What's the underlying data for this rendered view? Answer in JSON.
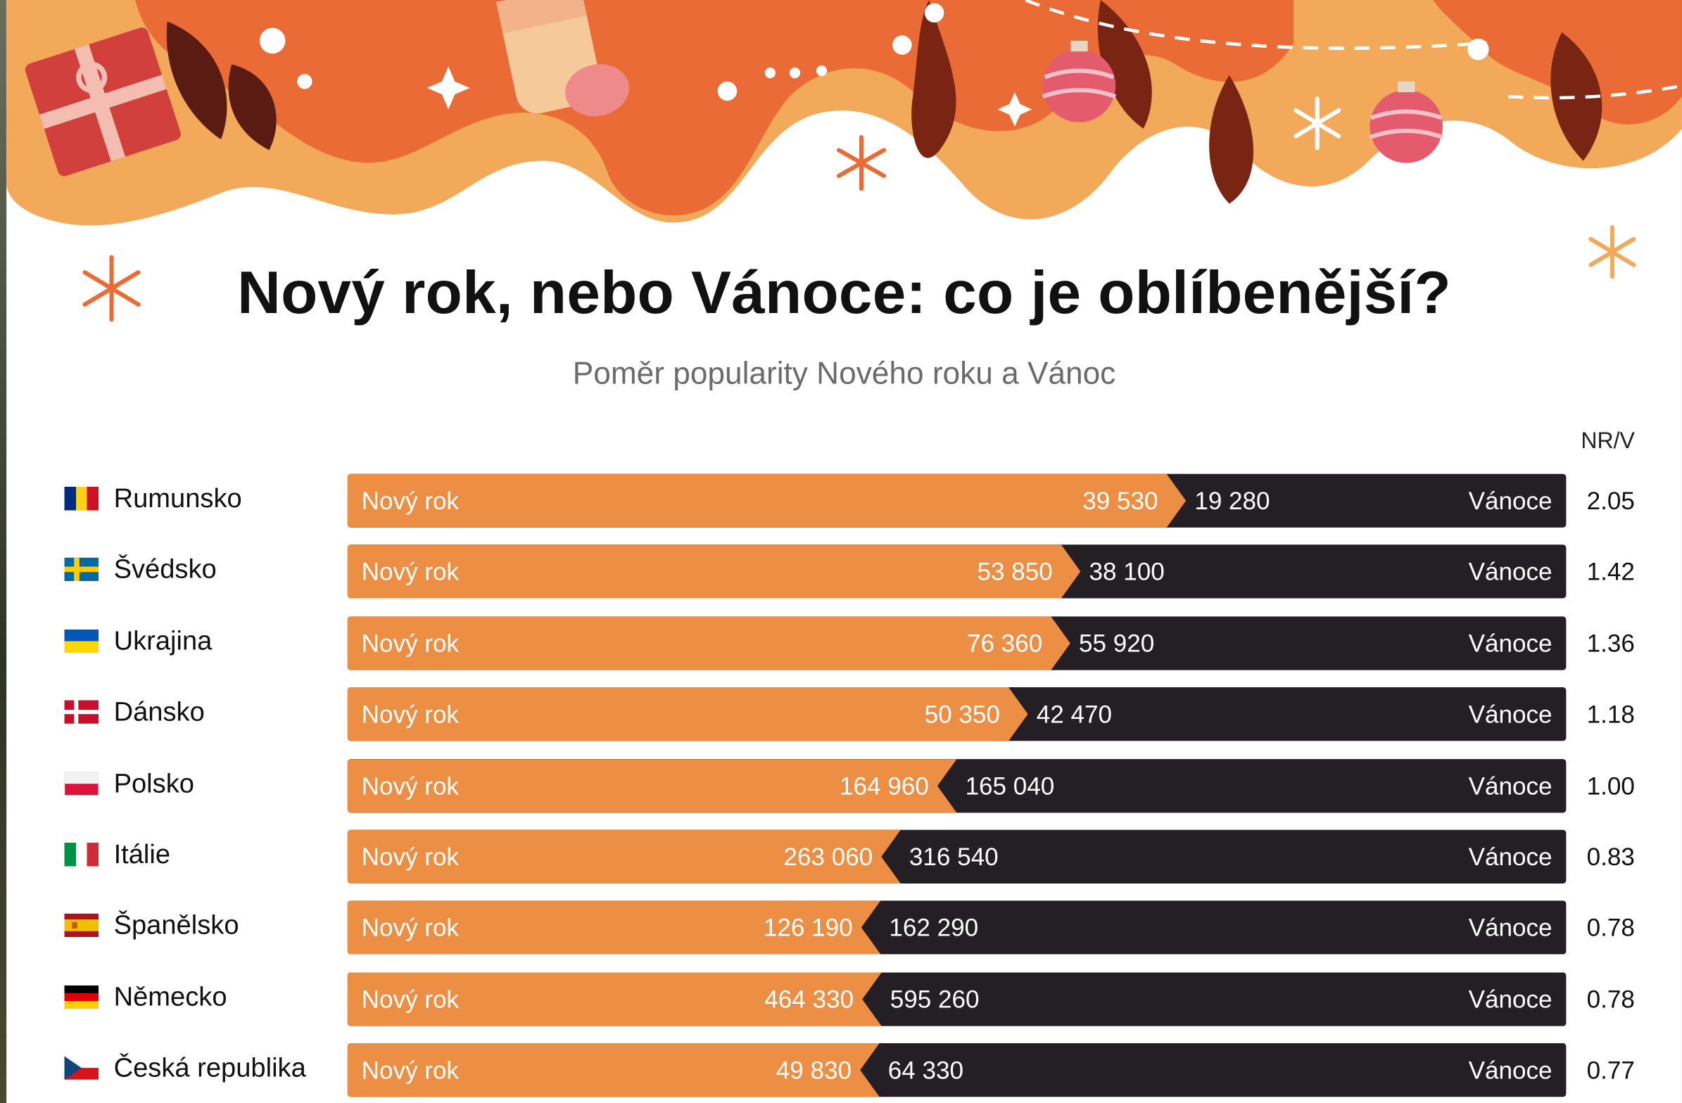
{
  "chart_data": {
    "type": "bar",
    "layout": "diverging-stacked-horizontal",
    "title": "Nový rok, nebo Vánoce: co je oblíbenější?",
    "subtitle": "Poměr popularity Nového roku a Vánoc",
    "ratio_header": "NR/V",
    "series_labels": {
      "left": "Nový rok",
      "right": "Vánoce"
    },
    "rows": [
      {
        "country": "Rumunsko",
        "flag": "romania-flag-icon",
        "new_year": 39530,
        "new_year_label": "39 530",
        "christmas": 19280,
        "christmas_label": "19 280",
        "ratio": "2.05"
      },
      {
        "country": "Švédsko",
        "flag": "sweden-flag-icon",
        "new_year": 53850,
        "new_year_label": "53 850",
        "christmas": 38100,
        "christmas_label": "38 100",
        "ratio": "1.42"
      },
      {
        "country": "Ukrajina",
        "flag": "ukraine-flag-icon",
        "new_year": 76360,
        "new_year_label": "76 360",
        "christmas": 55920,
        "christmas_label": "55 920",
        "ratio": "1.36"
      },
      {
        "country": "Dánsko",
        "flag": "denmark-flag-icon",
        "new_year": 50350,
        "new_year_label": "50 350",
        "christmas": 42470,
        "christmas_label": "42 470",
        "ratio": "1.18"
      },
      {
        "country": "Polsko",
        "flag": "poland-flag-icon",
        "new_year": 164960,
        "new_year_label": "164 960",
        "christmas": 165040,
        "christmas_label": "165 040",
        "ratio": "1.00"
      },
      {
        "country": "Itálie",
        "flag": "italy-flag-icon",
        "new_year": 263060,
        "new_year_label": "263 060",
        "christmas": 316540,
        "christmas_label": "316 540",
        "ratio": "0.83"
      },
      {
        "country": "Španělsko",
        "flag": "spain-flag-icon",
        "new_year": 126190,
        "new_year_label": "126 190",
        "christmas": 162290,
        "christmas_label": "162 290",
        "ratio": "0.78"
      },
      {
        "country": "Německo",
        "flag": "germany-flag-icon",
        "new_year": 464330,
        "new_year_label": "464 330",
        "christmas": 595260,
        "christmas_label": "595 260",
        "ratio": "0.78"
      },
      {
        "country": "Česká republika",
        "flag": "czech-flag-icon",
        "new_year": 49830,
        "new_year_label": "49 830",
        "christmas": 64330,
        "christmas_label": "64 330",
        "ratio": "0.77"
      }
    ]
  },
  "colors": {
    "new_year": "#ec8f45",
    "christmas": "#231f24",
    "banner_orange": "#ea6b35",
    "banner_light": "#f2a95a",
    "banner_dark": "#7a2414"
  }
}
